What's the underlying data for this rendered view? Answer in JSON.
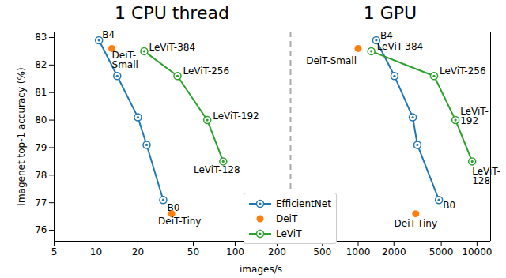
{
  "chart_data": {
    "type": "scatter",
    "log": "x",
    "xlabel": "images/s",
    "ylabel": "Imagenet top-1 accuracy (%)",
    "ylim": [
      75.6,
      83.2
    ],
    "yticks": [
      76,
      77,
      78,
      79,
      80,
      81,
      82,
      83
    ],
    "legend": "lower center",
    "panels": [
      {
        "title": "1 CPU thread",
        "xlim": [
          5,
          250
        ],
        "xticks": [
          5,
          10,
          20,
          50,
          100,
          200
        ],
        "series": [
          {
            "name": "EfficientNet",
            "color": "#1f77b4",
            "marker": "target",
            "line_style": "solid",
            "x": [
              10.5,
              14.2,
              20,
              23.1,
              30.4
            ],
            "values": [
              82.9,
              81.6,
              80.1,
              79.1,
              77.1
            ],
            "labels": [
              "B4",
              null,
              null,
              null,
              "B0"
            ]
          },
          {
            "name": "DeiT",
            "color": "#ff7f0e",
            "marker": "circle",
            "line_style": "none",
            "x": [
              13,
              35
            ],
            "values": [
              82.6,
              76.6
            ],
            "labels": [
              "DeiT-\nSmall",
              "DeiT-Tiny"
            ]
          },
          {
            "name": "LeViT",
            "color": "#2ca02c",
            "marker": "target",
            "line_style": "solid",
            "x": [
              22.2,
              38.5,
              63,
              82
            ],
            "values": [
              82.5,
              81.6,
              80.0,
              78.5
            ],
            "labels": [
              "LeViT-384",
              "LeViT-256",
              "LeViT-192",
              "LeViT-128"
            ]
          }
        ]
      },
      {
        "title": "1 GPU",
        "xlim": [
          270,
          13000
        ],
        "xticks": [
          500,
          1000,
          2000,
          5000,
          10000
        ],
        "series": [
          {
            "name": "EfficientNet",
            "color": "#1f77b4",
            "marker": "target",
            "line_style": "solid",
            "x": [
              1420,
              2020,
              2880,
              3150,
              4780
            ],
            "values": [
              82.9,
              81.6,
              80.1,
              79.1,
              77.1
            ],
            "labels": [
              "B4",
              null,
              null,
              null,
              "B0"
            ]
          },
          {
            "name": "DeiT",
            "color": "#ff7f0e",
            "marker": "circle",
            "line_style": "none",
            "x": [
              1000,
              3050
            ],
            "values": [
              82.6,
              76.6
            ],
            "labels": [
              "DeiT-Small",
              "DeiT-Tiny"
            ]
          },
          {
            "name": "LeViT",
            "color": "#2ca02c",
            "marker": "target",
            "line_style": "solid",
            "x": [
              1290,
              4350,
              6590,
              9100
            ],
            "values": [
              82.5,
              81.6,
              80.0,
              78.5
            ],
            "labels": [
              "LeViT-384",
              "LeViT-256",
              "LeViT-\n192",
              "LeViT-\n128"
            ]
          }
        ]
      }
    ]
  }
}
